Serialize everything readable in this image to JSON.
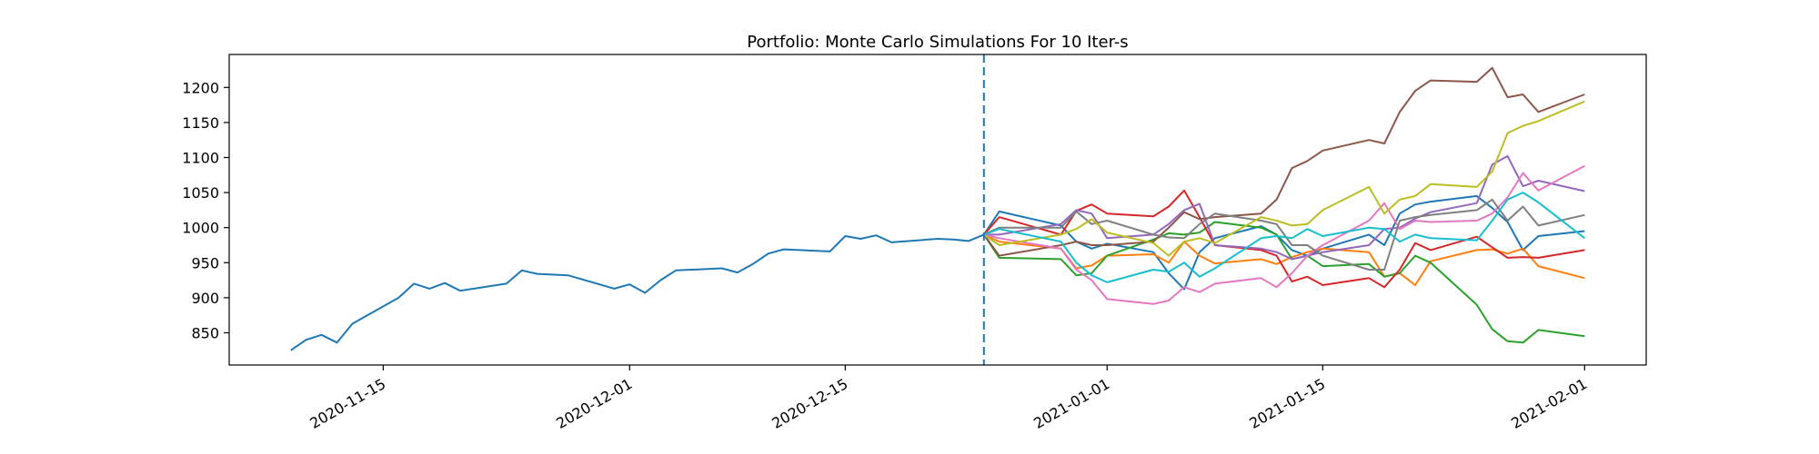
{
  "chart_data": {
    "type": "line",
    "title": "Portfolio: Monte Carlo Simulations For 10 Iter-s",
    "xlabel": "",
    "ylabel": "",
    "xlim": [
      "2020-11-05",
      "2021-02-05"
    ],
    "ylim": [
      804,
      1247
    ],
    "grid": false,
    "legend": "none",
    "x_ticks": [
      {
        "value": "2020-11-15",
        "label": "2020-11-15"
      },
      {
        "value": "2020-12-01",
        "label": "2020-12-01"
      },
      {
        "value": "2020-12-15",
        "label": "2020-12-15"
      },
      {
        "value": "2021-01-01",
        "label": "2021-01-01"
      },
      {
        "value": "2021-01-15",
        "label": "2021-01-15"
      },
      {
        "value": "2021-02-01",
        "label": "2021-02-01"
      }
    ],
    "y_ticks": [
      850,
      900,
      950,
      1000,
      1050,
      1100,
      1150,
      1200
    ],
    "forecast_start": "2020-12-24",
    "history": {
      "color": "#1f77b4",
      "points": [
        [
          "2020-11-09",
          825
        ],
        [
          "2020-11-10",
          840
        ],
        [
          "2020-11-11",
          847
        ],
        [
          "2020-11-12",
          836
        ],
        [
          "2020-11-13",
          863
        ],
        [
          "2020-11-16",
          900
        ],
        [
          "2020-11-17",
          920
        ],
        [
          "2020-11-18",
          913
        ],
        [
          "2020-11-19",
          921
        ],
        [
          "2020-11-20",
          910
        ],
        [
          "2020-11-23",
          920
        ],
        [
          "2020-11-24",
          939
        ],
        [
          "2020-11-25",
          934
        ],
        [
          "2020-11-27",
          932
        ],
        [
          "2020-11-30",
          913
        ],
        [
          "2020-12-01",
          919
        ],
        [
          "2020-12-02",
          907
        ],
        [
          "2020-12-03",
          925
        ],
        [
          "2020-12-04",
          939
        ],
        [
          "2020-12-07",
          942
        ],
        [
          "2020-12-08",
          936
        ],
        [
          "2020-12-09",
          948
        ],
        [
          "2020-12-10",
          963
        ],
        [
          "2020-12-11",
          969
        ],
        [
          "2020-12-14",
          966
        ],
        [
          "2020-12-15",
          988
        ],
        [
          "2020-12-16",
          984
        ],
        [
          "2020-12-17",
          989
        ],
        [
          "2020-12-18",
          979
        ],
        [
          "2020-12-21",
          984
        ],
        [
          "2020-12-22",
          983
        ],
        [
          "2020-12-23",
          981
        ],
        [
          "2020-12-24",
          990
        ]
      ]
    },
    "dates": [
      "2020-12-24",
      "2020-12-25",
      "2020-12-29",
      "2020-12-30",
      "2020-12-31",
      "2021-01-01",
      "2021-01-04",
      "2021-01-05",
      "2021-01-06",
      "2021-01-07",
      "2021-01-08",
      "2021-01-11",
      "2021-01-12",
      "2021-01-13",
      "2021-01-14",
      "2021-01-15",
      "2021-01-18",
      "2021-01-19",
      "2021-01-20",
      "2021-01-21",
      "2021-01-22",
      "2021-01-25",
      "2021-01-26",
      "2021-01-27",
      "2021-01-28",
      "2021-01-29",
      "2021-02-01"
    ],
    "series": [
      {
        "color": "#1f77b4",
        "values": [
          990,
          1023,
          1003,
          980,
          970,
          977,
          965,
          935,
          912,
          965,
          985,
          1002,
          990,
          968,
          960,
          970,
          990,
          975,
          1020,
          1033,
          1037,
          1045,
          1028,
          1008,
          968,
          988,
          995
        ]
      },
      {
        "color": "#ff7f0e",
        "values": [
          990,
          980,
          970,
          942,
          946,
          960,
          962,
          950,
          980,
          960,
          949,
          955,
          948,
          958,
          965,
          970,
          965,
          930,
          935,
          918,
          952,
          968,
          969,
          963,
          970,
          945,
          928
        ]
      },
      {
        "color": "#2ca02c",
        "values": [
          990,
          957,
          955,
          932,
          935,
          960,
          983,
          992,
          990,
          993,
          1008,
          1000,
          990,
          955,
          960,
          945,
          948,
          930,
          935,
          960,
          950,
          890,
          855,
          838,
          836,
          854,
          845
        ]
      },
      {
        "color": "#d62728",
        "values": [
          990,
          1015,
          990,
          1024,
          1033,
          1020,
          1016,
          1030,
          1053,
          1015,
          975,
          968,
          960,
          923,
          930,
          918,
          928,
          915,
          940,
          978,
          968,
          987,
          972,
          957,
          958,
          957,
          968
        ]
      },
      {
        "color": "#9467bd",
        "values": [
          990,
          990,
          1005,
          1025,
          1020,
          985,
          990,
          1005,
          1025,
          1034,
          975,
          970,
          965,
          955,
          960,
          965,
          975,
          998,
          1000,
          1013,
          1022,
          1035,
          1090,
          1102,
          1059,
          1067,
          1052
        ]
      },
      {
        "color": "#8c564b",
        "values": [
          990,
          960,
          975,
          980,
          975,
          975,
          980,
          1000,
          1022,
          1012,
          1015,
          1020,
          1040,
          1085,
          1095,
          1110,
          1125,
          1120,
          1165,
          1195,
          1210,
          1208,
          1228,
          1186,
          1190,
          1165,
          1190
        ]
      },
      {
        "color": "#e377c2",
        "values": [
          990,
          985,
          970,
          940,
          925,
          898,
          891,
          896,
          915,
          908,
          920,
          928,
          915,
          935,
          960,
          975,
          1010,
          1035,
          998,
          1010,
          1008,
          1010,
          1020,
          1043,
          1078,
          1053,
          1088
        ]
      },
      {
        "color": "#7f7f7f",
        "values": [
          990,
          1000,
          1000,
          1023,
          1005,
          1010,
          990,
          986,
          985,
          1005,
          1020,
          1010,
          1005,
          975,
          975,
          960,
          940,
          940,
          1010,
          1015,
          1018,
          1025,
          1040,
          1010,
          1030,
          1003,
          1018
        ]
      },
      {
        "color": "#bcbd22",
        "values": [
          990,
          975,
          990,
          998,
          1012,
          993,
          978,
          960,
          980,
          985,
          978,
          1015,
          1010,
          1003,
          1005,
          1025,
          1058,
          1020,
          1040,
          1045,
          1062,
          1058,
          1080,
          1135,
          1145,
          1152,
          1180
        ]
      },
      {
        "color": "#17becf",
        "values": [
          990,
          998,
          980,
          950,
          932,
          922,
          940,
          937,
          950,
          930,
          942,
          985,
          988,
          985,
          998,
          988,
          1000,
          998,
          980,
          990,
          985,
          982,
          1010,
          1040,
          1050,
          1036,
          985
        ]
      }
    ]
  }
}
